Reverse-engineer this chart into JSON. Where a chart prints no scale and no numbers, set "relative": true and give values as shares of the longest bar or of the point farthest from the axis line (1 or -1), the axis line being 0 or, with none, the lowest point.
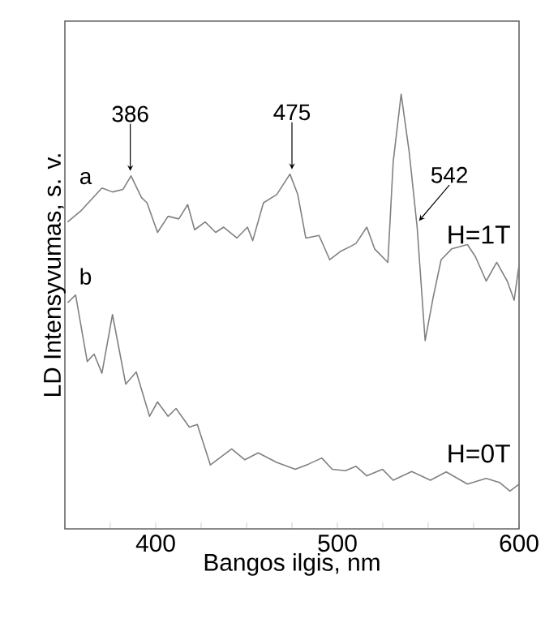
{
  "chart_data": {
    "type": "line",
    "relative": true,
    "xlabel": "Bangos ilgis, nm",
    "ylabel": "LD Intensyvumas, s. v.",
    "xlim": [
      350,
      600
    ],
    "xticks": [
      {
        "value": 350,
        "label": null
      },
      {
        "value": 375,
        "label": null
      },
      400,
      {
        "value": 425,
        "label": null
      },
      {
        "value": 450,
        "label": null
      },
      {
        "value": 475,
        "label": null
      },
      500,
      {
        "value": 525,
        "label": null
      },
      {
        "value": 550,
        "label": null
      },
      {
        "value": 575,
        "label": null
      },
      600
    ],
    "tick_labels": "x",
    "marker": "none",
    "line_style": "solid",
    "annotations": [
      "H=1T",
      "H=0T",
      {
        "text": "386",
        "x": 386,
        "y": 0.812
      },
      {
        "text": "475",
        "x": 475,
        "y": 0.816
      },
      {
        "text": "542",
        "x": 542,
        "y": 0.694
      }
    ],
    "series": [
      {
        "name": "a",
        "color": "#808080",
        "x": [
          351.5,
          358.7,
          370.4,
          376.2,
          382,
          386.4,
          392.2,
          395.2,
          401,
          406.8,
          412.7,
          417.6,
          421.4,
          427.2,
          433,
          437.4,
          444.7,
          450.5,
          453.4,
          459.3,
          466.6,
          473.9,
          478.2,
          482.6,
          489.9,
          495.8,
          501.6,
          507.4,
          510.3,
          516.2,
          520.5,
          527.8,
          530.7,
          535.1,
          539.5,
          543.9,
          548.3,
          552.7,
          557.1,
          562.9,
          571.6,
          576,
          581.9,
          587.7,
          593.5,
          597.3,
          600
        ],
        "values": [
          0.706,
          0.731,
          0.784,
          0.775,
          0.781,
          0.812,
          0.762,
          0.75,
          0.682,
          0.719,
          0.713,
          0.746,
          0.688,
          0.706,
          0.682,
          0.694,
          0.669,
          0.694,
          0.663,
          0.75,
          0.769,
          0.816,
          0.769,
          0.669,
          0.675,
          0.619,
          0.638,
          0.65,
          0.657,
          0.694,
          0.644,
          0.613,
          0.843,
          1,
          0.868,
          0.694,
          0.433,
          0.532,
          0.619,
          0.644,
          0.654,
          0.626,
          0.57,
          0.613,
          0.57,
          0.526,
          0.607
        ]
      },
      {
        "name": "b",
        "color": "#808080",
        "x": [
          351.5,
          355.9,
          362.3,
          366.1,
          370.4,
          376.2,
          383.5,
          389.3,
          396.6,
          401,
          406.8,
          411.2,
          418.5,
          422.9,
          430.1,
          441.8,
          449.1,
          456.4,
          466.6,
          476.8,
          484.1,
          491.4,
          497.2,
          504.5,
          510.3,
          516.2,
          524.9,
          530.7,
          540.9,
          551.2,
          559.9,
          571.6,
          581.9,
          589.2,
          595,
          600
        ],
        "values": [
          0.52,
          0.538,
          0.385,
          0.402,
          0.358,
          0.493,
          0.333,
          0.361,
          0.259,
          0.292,
          0.259,
          0.277,
          0.234,
          0.24,
          0.147,
          0.184,
          0.159,
          0.175,
          0.153,
          0.137,
          0.149,
          0.163,
          0.137,
          0.134,
          0.144,
          0.122,
          0.137,
          0.112,
          0.132,
          0.112,
          0.131,
          0.103,
          0.116,
          0.107,
          0.087,
          0.103
        ]
      }
    ]
  }
}
